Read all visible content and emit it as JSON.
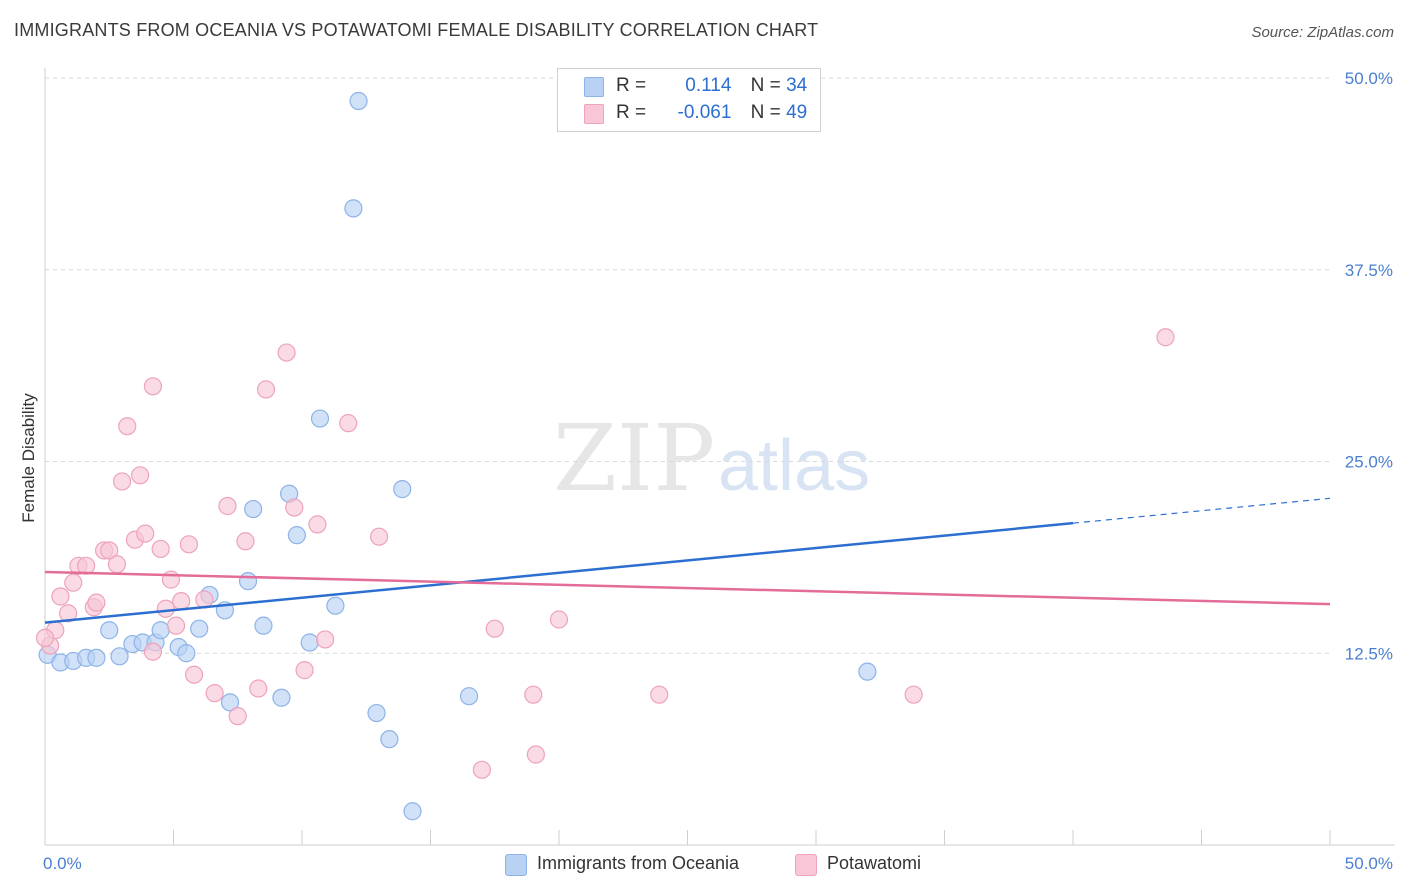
{
  "title": "IMMIGRANTS FROM OCEANIA VS POTAWATOMI FEMALE DISABILITY CORRELATION CHART",
  "source": "Source: ZipAtlas.com",
  "watermark": {
    "part1": "ZIP",
    "part2": "atlas"
  },
  "legend": {
    "rows": [
      {
        "r_label": "R =",
        "r_value": "0.114",
        "n_label": "N =",
        "n_value": "34"
      },
      {
        "r_label": "R =",
        "r_value": "-0.061",
        "n_label": "N =",
        "n_value": "49"
      }
    ]
  },
  "bottom_legend": [
    "Immigrants from Oceania",
    "Potawatomi"
  ],
  "colors": {
    "blue_fill": "#b9d1f3",
    "blue_stroke": "#8db3e8",
    "blue_line": "#2c6fd1",
    "pink_fill": "#f8c6d6",
    "pink_stroke": "#eea3bb",
    "pink_line": "#e36c98",
    "axis_text": "#4a7fcf",
    "grid": "#d9d9d9"
  },
  "chart_data": {
    "type": "scatter",
    "title": "IMMIGRANTS FROM OCEANIA VS POTAWATOMI FEMALE DISABILITY CORRELATION CHART",
    "xlabel": "",
    "ylabel": "Female Disability",
    "xlim": [
      0,
      50
    ],
    "ylim": [
      0,
      50
    ],
    "x_tick_labels": [
      "0.0%",
      "50.0%"
    ],
    "y_tick_labels": [
      "12.5%",
      "25.0%",
      "37.5%",
      "50.0%"
    ],
    "y_ticks": [
      12.5,
      25.0,
      37.5,
      50.0
    ],
    "grid": "horizontal dashed",
    "series": [
      {
        "name": "Immigrants from Oceania",
        "color": "#b9d1f3",
        "points": [
          [
            0.1,
            12.4
          ],
          [
            0.6,
            11.9
          ],
          [
            1.1,
            12.0
          ],
          [
            1.6,
            12.2
          ],
          [
            2.0,
            12.2
          ],
          [
            2.5,
            14.0
          ],
          [
            2.9,
            12.3
          ],
          [
            3.4,
            13.1
          ],
          [
            3.8,
            13.2
          ],
          [
            4.3,
            13.2
          ],
          [
            4.5,
            14.0
          ],
          [
            5.2,
            12.9
          ],
          [
            5.5,
            12.5
          ],
          [
            6.0,
            14.1
          ],
          [
            6.4,
            16.3
          ],
          [
            7.0,
            15.3
          ],
          [
            7.2,
            9.3
          ],
          [
            7.9,
            17.2
          ],
          [
            8.1,
            21.9
          ],
          [
            8.5,
            14.3
          ],
          [
            9.2,
            9.6
          ],
          [
            9.5,
            22.9
          ],
          [
            9.8,
            20.2
          ],
          [
            10.3,
            13.2
          ],
          [
            10.7,
            27.8
          ],
          [
            11.3,
            15.6
          ],
          [
            12.0,
            41.5
          ],
          [
            12.2,
            48.5
          ],
          [
            12.9,
            8.6
          ],
          [
            13.4,
            6.9
          ],
          [
            13.9,
            23.2
          ],
          [
            14.3,
            2.2
          ],
          [
            16.5,
            9.7
          ],
          [
            32.0,
            11.3
          ]
        ]
      },
      {
        "name": "Potawatomi",
        "color": "#f8c6d6",
        "points": [
          [
            0.2,
            13.0
          ],
          [
            0.4,
            14.0
          ],
          [
            0.6,
            16.2
          ],
          [
            0.9,
            15.1
          ],
          [
            1.1,
            17.1
          ],
          [
            1.3,
            18.2
          ],
          [
            1.6,
            18.2
          ],
          [
            1.9,
            15.5
          ],
          [
            2.0,
            15.8
          ],
          [
            2.3,
            19.2
          ],
          [
            2.5,
            19.2
          ],
          [
            2.8,
            18.3
          ],
          [
            3.0,
            23.7
          ],
          [
            3.2,
            27.3
          ],
          [
            3.5,
            19.9
          ],
          [
            3.7,
            24.1
          ],
          [
            3.9,
            20.3
          ],
          [
            4.2,
            12.6
          ],
          [
            4.2,
            29.9
          ],
          [
            4.5,
            19.3
          ],
          [
            4.7,
            15.4
          ],
          [
            4.9,
            17.3
          ],
          [
            5.1,
            14.3
          ],
          [
            5.3,
            15.9
          ],
          [
            5.6,
            19.6
          ],
          [
            5.8,
            11.1
          ],
          [
            6.2,
            16.0
          ],
          [
            6.6,
            9.9
          ],
          [
            7.1,
            22.1
          ],
          [
            7.5,
            8.4
          ],
          [
            7.8,
            19.8
          ],
          [
            8.3,
            10.2
          ],
          [
            8.6,
            29.7
          ],
          [
            9.4,
            32.1
          ],
          [
            9.7,
            22.0
          ],
          [
            10.1,
            11.4
          ],
          [
            10.6,
            20.9
          ],
          [
            10.9,
            13.4
          ],
          [
            11.8,
            27.5
          ],
          [
            13.0,
            20.1
          ],
          [
            17.5,
            14.1
          ],
          [
            19.0,
            9.8
          ],
          [
            19.1,
            5.9
          ],
          [
            17.0,
            4.9
          ],
          [
            20.0,
            14.7
          ],
          [
            23.9,
            9.8
          ],
          [
            33.8,
            9.8
          ],
          [
            43.6,
            33.1
          ],
          [
            0.0,
            13.5
          ]
        ]
      }
    ],
    "trendlines": [
      {
        "series": "Immigrants from Oceania",
        "x_start": 0,
        "y_start": 14.5,
        "x_solid_end": 40,
        "x_end": 50,
        "y_end": 22.6
      },
      {
        "series": "Potawatomi",
        "x_start": 0,
        "y_start": 17.8,
        "x_end": 50,
        "y_end": 15.7
      }
    ]
  }
}
